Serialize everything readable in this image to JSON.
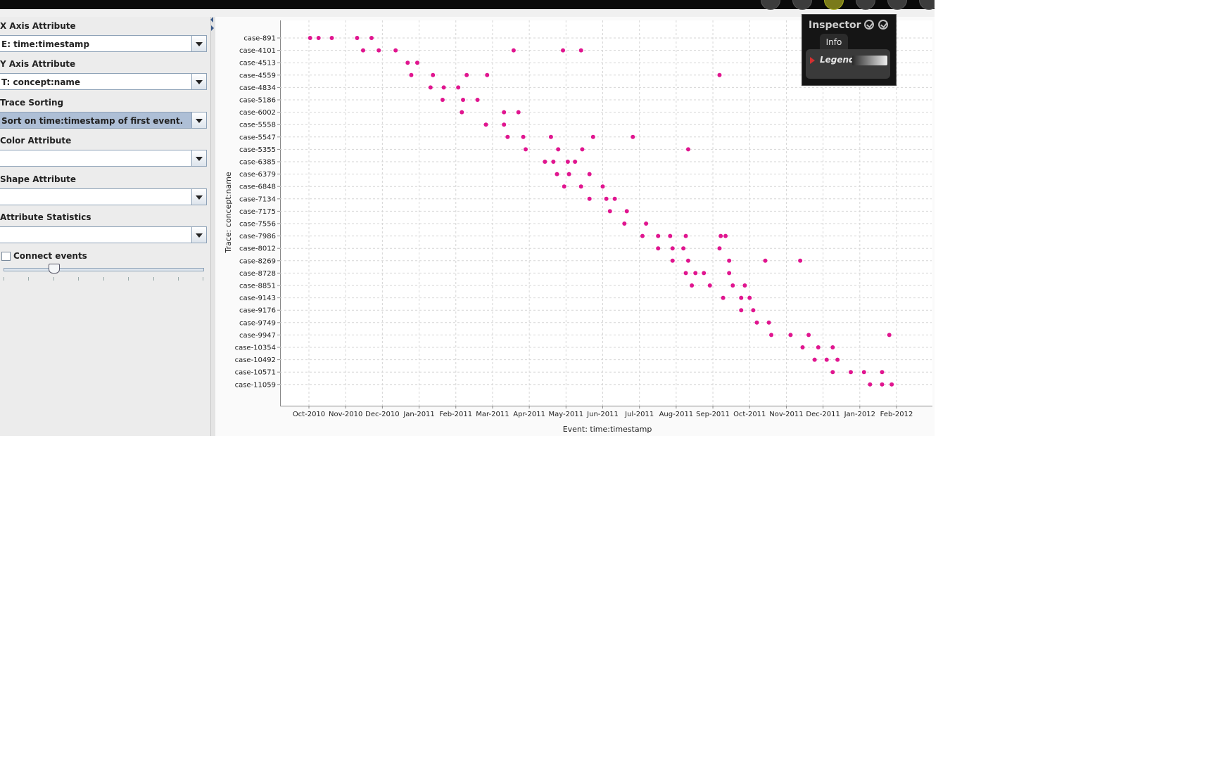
{
  "left_panel": {
    "x_axis_label": "X Axis Attribute",
    "x_axis_value": "E: time:timestamp",
    "y_axis_label": "Y Axis Attribute",
    "y_axis_value": "T: concept:name",
    "trace_sorting_label": "Trace Sorting",
    "trace_sorting_value": "Sort on time:timestamp of first event.",
    "color_label": "Color Attribute",
    "color_value": "",
    "shape_label": "Shape Attribute",
    "shape_value": "",
    "stats_label": "Attribute Statistics",
    "stats_value": "",
    "connect_events_label": "Connect events",
    "connect_events_checked": false,
    "slider_value": 0.25
  },
  "inspector": {
    "title": "Inspector",
    "tab": "Info",
    "legend_label": "Legend"
  },
  "chart_data": {
    "type": "scatter",
    "xlabel": "Event: time:timestamp",
    "ylabel": "Trace: concept:name",
    "x_tick_labels": [
      "Oct-2010",
      "Nov-2010",
      "Dec-2010",
      "Jan-2011",
      "Feb-2011",
      "Mar-2011",
      "Apr-2011",
      "May-2011",
      "Jun-2011",
      "Jul-2011",
      "Aug-2011",
      "Sep-2011",
      "Oct-2011",
      "Nov-2011",
      "Dec-2011",
      "Jan-2012",
      "Feb-2012"
    ],
    "x_range": [
      "2010-10-01",
      "2012-02-01"
    ],
    "y_tick_labels": [
      "case-891",
      "case-4101",
      "case-4513",
      "case-4559",
      "case-4834",
      "case-5186",
      "case-6002",
      "case-5558",
      "case-5547",
      "case-5355",
      "case-6385",
      "case-6379",
      "case-6848",
      "case-7134",
      "case-7175",
      "case-7556",
      "case-7986",
      "case-8012",
      "case-8269",
      "case-8728",
      "case-8851",
      "case-9143",
      "case-9176",
      "case-9749",
      "case-9947",
      "case-10354",
      "case-10492",
      "case-10571",
      "case-11059"
    ],
    "grid": true,
    "marker_color": "#e0158f",
    "series": [
      {
        "points": [
          [
            "2010-10-02",
            "case-891"
          ],
          [
            "2010-10-09",
            "case-891"
          ],
          [
            "2010-10-20",
            "case-891"
          ],
          [
            "2010-11-10",
            "case-891"
          ],
          [
            "2010-11-22",
            "case-891"
          ],
          [
            "2010-11-15",
            "case-4101"
          ],
          [
            "2010-11-28",
            "case-4101"
          ],
          [
            "2010-12-12",
            "case-4101"
          ],
          [
            "2011-03-20",
            "case-4101"
          ],
          [
            "2011-04-30",
            "case-4101"
          ],
          [
            "2011-05-15",
            "case-4101"
          ],
          [
            "2010-12-22",
            "case-4513"
          ],
          [
            "2010-12-30",
            "case-4513"
          ],
          [
            "2010-12-25",
            "case-4559"
          ],
          [
            "2011-01-12",
            "case-4559"
          ],
          [
            "2011-02-09",
            "case-4559"
          ],
          [
            "2011-02-26",
            "case-4559"
          ],
          [
            "2011-09-07",
            "case-4559"
          ],
          [
            "2011-01-10",
            "case-4834"
          ],
          [
            "2011-01-21",
            "case-4834"
          ],
          [
            "2011-02-02",
            "case-4834"
          ],
          [
            "2011-01-20",
            "case-5186"
          ],
          [
            "2011-02-06",
            "case-5186"
          ],
          [
            "2011-02-18",
            "case-5186"
          ],
          [
            "2011-02-05",
            "case-6002"
          ],
          [
            "2011-03-12",
            "case-6002"
          ],
          [
            "2011-03-24",
            "case-6002"
          ],
          [
            "2011-02-25",
            "case-5558"
          ],
          [
            "2011-03-12",
            "case-5558"
          ],
          [
            "2011-03-15",
            "case-5547"
          ],
          [
            "2011-03-28",
            "case-5547"
          ],
          [
            "2011-04-20",
            "case-5547"
          ],
          [
            "2011-05-25",
            "case-5547"
          ],
          [
            "2011-06-27",
            "case-5547"
          ],
          [
            "2011-03-30",
            "case-5355"
          ],
          [
            "2011-04-26",
            "case-5355"
          ],
          [
            "2011-05-16",
            "case-5355"
          ],
          [
            "2011-08-12",
            "case-5355"
          ],
          [
            "2011-04-15",
            "case-6385"
          ],
          [
            "2011-04-22",
            "case-6385"
          ],
          [
            "2011-05-04",
            "case-6385"
          ],
          [
            "2011-05-10",
            "case-6385"
          ],
          [
            "2011-04-25",
            "case-6379"
          ],
          [
            "2011-05-05",
            "case-6379"
          ],
          [
            "2011-05-22",
            "case-6379"
          ],
          [
            "2011-05-01",
            "case-6848"
          ],
          [
            "2011-05-15",
            "case-6848"
          ],
          [
            "2011-06-02",
            "case-6848"
          ],
          [
            "2011-05-22",
            "case-7134"
          ],
          [
            "2011-06-05",
            "case-7134"
          ],
          [
            "2011-06-12",
            "case-7134"
          ],
          [
            "2011-06-08",
            "case-7175"
          ],
          [
            "2011-06-22",
            "case-7175"
          ],
          [
            "2011-06-20",
            "case-7556"
          ],
          [
            "2011-07-08",
            "case-7556"
          ],
          [
            "2011-07-05",
            "case-7986"
          ],
          [
            "2011-07-18",
            "case-7986"
          ],
          [
            "2011-07-28",
            "case-7986"
          ],
          [
            "2011-08-10",
            "case-7986"
          ],
          [
            "2011-09-08",
            "case-7986"
          ],
          [
            "2011-09-12",
            "case-7986"
          ],
          [
            "2011-07-18",
            "case-8012"
          ],
          [
            "2011-07-30",
            "case-8012"
          ],
          [
            "2011-08-08",
            "case-8012"
          ],
          [
            "2011-09-07",
            "case-8012"
          ],
          [
            "2011-07-30",
            "case-8269"
          ],
          [
            "2011-08-12",
            "case-8269"
          ],
          [
            "2011-09-15",
            "case-8269"
          ],
          [
            "2011-10-15",
            "case-8269"
          ],
          [
            "2011-11-13",
            "case-8269"
          ],
          [
            "2011-08-10",
            "case-8728"
          ],
          [
            "2011-08-18",
            "case-8728"
          ],
          [
            "2011-08-25",
            "case-8728"
          ],
          [
            "2011-09-15",
            "case-8728"
          ],
          [
            "2011-08-15",
            "case-8851"
          ],
          [
            "2011-08-30",
            "case-8851"
          ],
          [
            "2011-09-18",
            "case-8851"
          ],
          [
            "2011-09-28",
            "case-8851"
          ],
          [
            "2011-09-10",
            "case-9143"
          ],
          [
            "2011-09-25",
            "case-9143"
          ],
          [
            "2011-10-02",
            "case-9143"
          ],
          [
            "2011-09-25",
            "case-9176"
          ],
          [
            "2011-10-05",
            "case-9176"
          ],
          [
            "2011-10-08",
            "case-9749"
          ],
          [
            "2011-10-18",
            "case-9749"
          ],
          [
            "2011-10-20",
            "case-9947"
          ],
          [
            "2011-11-05",
            "case-9947"
          ],
          [
            "2011-11-20",
            "case-9947"
          ],
          [
            "2012-01-26",
            "case-9947"
          ],
          [
            "2011-11-15",
            "case-10354"
          ],
          [
            "2011-11-28",
            "case-10354"
          ],
          [
            "2011-12-10",
            "case-10354"
          ],
          [
            "2011-11-25",
            "case-10492"
          ],
          [
            "2011-12-05",
            "case-10492"
          ],
          [
            "2011-12-14",
            "case-10492"
          ],
          [
            "2011-12-10",
            "case-10571"
          ],
          [
            "2011-12-25",
            "case-10571"
          ],
          [
            "2012-01-05",
            "case-10571"
          ],
          [
            "2012-01-20",
            "case-10571"
          ],
          [
            "2012-01-10",
            "case-11059"
          ],
          [
            "2012-01-20",
            "case-11059"
          ],
          [
            "2012-01-28",
            "case-11059"
          ]
        ]
      }
    ]
  }
}
